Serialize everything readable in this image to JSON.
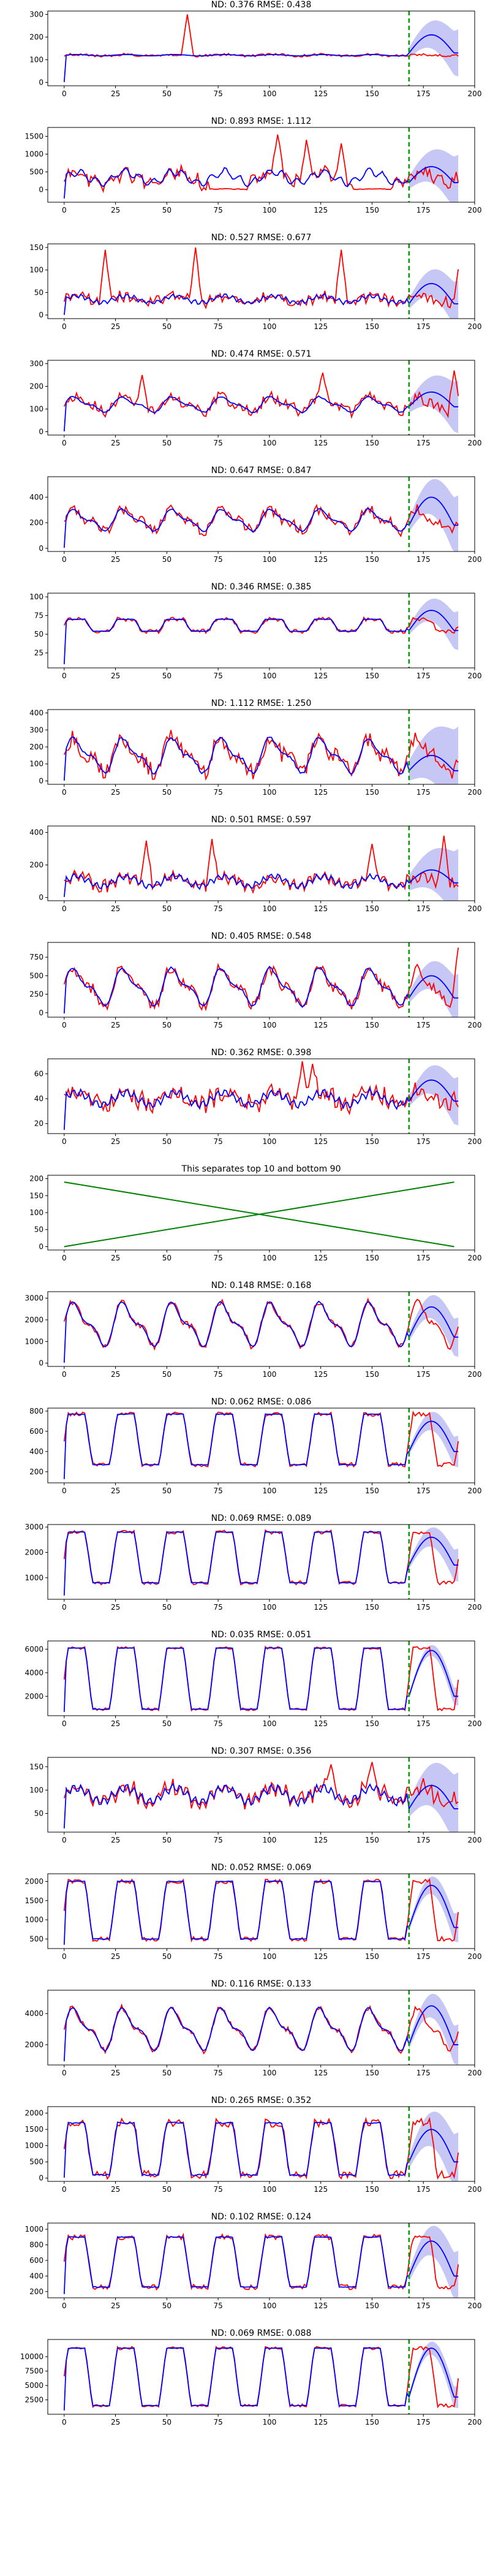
{
  "figure": {
    "x_ticks": [
      0,
      25,
      50,
      75,
      100,
      125,
      150,
      175,
      200
    ],
    "x_range": [
      -8,
      200
    ],
    "forecast_start": 168,
    "colors": {
      "target": "#ff0000",
      "forecast": "#0000ff",
      "band": "#9999ee",
      "divider": "#00a000",
      "separator": "#008000"
    }
  },
  "chart_data": [
    {
      "type": "line",
      "title": "ND:  0.376 RMSE:  0.438",
      "y_range": [
        -15,
        315
      ],
      "y_ticks": [
        0,
        100,
        200,
        300
      ],
      "base": 120,
      "amp": 10,
      "period": 24,
      "pattern": "flat",
      "noise": 0.12,
      "spikes": [
        [
          60,
          300
        ]
      ],
      "fc_peak": 210,
      "fc_low": 130,
      "band": 80,
      "seed": 1
    },
    {
      "type": "line",
      "title": "ND:  0.893 RMSE:  1.112",
      "y_range": [
        -350,
        1750
      ],
      "y_ticks": [
        0,
        500,
        1000,
        1500
      ],
      "base": 350,
      "amp": 250,
      "period": 24,
      "pattern": "dense",
      "noise": 0.5,
      "spikes": [
        [
          104,
          1550
        ],
        [
          118,
          1400
        ],
        [
          135,
          1300
        ]
      ],
      "fc_peak": 650,
      "fc_low": 200,
      "band": 600,
      "seed": 2
    },
    {
      "type": "line",
      "title": "ND:  0.527 RMSE:  0.677",
      "y_range": [
        -8,
        158
      ],
      "y_ticks": [
        0,
        50,
        100,
        150
      ],
      "base": 35,
      "amp": 15,
      "period": 24,
      "pattern": "spiky",
      "noise": 0.4,
      "spikes": [
        [
          20,
          145
        ],
        [
          64,
          150
        ],
        [
          135,
          145
        ],
        [
          193,
          140
        ]
      ],
      "fc_peak": 70,
      "fc_low": 25,
      "band": 40,
      "seed": 3
    },
    {
      "type": "line",
      "title": "ND:  0.474 RMSE:  0.571",
      "y_range": [
        -15,
        315
      ],
      "y_ticks": [
        0,
        100,
        200,
        300
      ],
      "base": 120,
      "amp": 40,
      "period": 24,
      "pattern": "wave",
      "noise": 0.3,
      "spikes": [
        [
          38,
          250
        ],
        [
          126,
          260
        ],
        [
          190,
          270
        ]
      ],
      "fc_peak": 175,
      "fc_low": 110,
      "band": 90,
      "seed": 4
    },
    {
      "type": "line",
      "title": "ND:  0.647 RMSE:  0.847",
      "y_range": [
        -25,
        560
      ],
      "y_ticks": [
        0,
        200,
        400
      ],
      "base": 220,
      "amp": 100,
      "period": 24,
      "pattern": "wave",
      "noise": 0.25,
      "spikes": [],
      "fc_peak": 400,
      "fc_low": 180,
      "band": 180,
      "seed": 5
    },
    {
      "type": "line",
      "title": "ND:  0.346 RMSE:  0.385",
      "y_range": [
        5,
        105
      ],
      "y_ticks": [
        25,
        50,
        75,
        100
      ],
      "base": 62,
      "amp": 8,
      "period": 24,
      "pattern": "plateau",
      "noise": 0.1,
      "spikes": [],
      "fc_peak": 82,
      "fc_low": 55,
      "band": 20,
      "seed": 6
    },
    {
      "type": "line",
      "title": "ND:  1.112 RMSE:  1.250",
      "y_range": [
        -20,
        420
      ],
      "y_ticks": [
        0,
        100,
        200,
        300,
        400
      ],
      "base": 150,
      "amp": 120,
      "period": 24,
      "pattern": "wave",
      "noise": 0.3,
      "spikes": [],
      "fc_peak": 150,
      "fc_low": 60,
      "band": 200,
      "seed": 7
    },
    {
      "type": "line",
      "title": "ND:  0.501 RMSE:  0.597",
      "y_range": [
        -20,
        440
      ],
      "y_ticks": [
        0,
        200,
        400
      ],
      "base": 100,
      "amp": 60,
      "period": 24,
      "pattern": "spiky",
      "noise": 0.35,
      "spikes": [
        [
          40,
          350
        ],
        [
          72,
          360
        ],
        [
          150,
          330
        ],
        [
          185,
          380
        ]
      ],
      "fc_peak": 170,
      "fc_low": 90,
      "band": 160,
      "seed": 8
    },
    {
      "type": "line",
      "title": "ND:  0.405 RMSE:  0.548",
      "y_range": [
        -60,
        950
      ],
      "y_ticks": [
        0,
        250,
        500,
        750
      ],
      "base": 350,
      "amp": 300,
      "period": 24,
      "pattern": "wave",
      "noise": 0.2,
      "spikes": [
        [
          192,
          880
        ]
      ],
      "fc_peak": 500,
      "fc_low": 200,
      "band": 250,
      "seed": 9
    },
    {
      "type": "line",
      "title": "ND:  0.362 RMSE:  0.398",
      "y_range": [
        12,
        72
      ],
      "y_ticks": [
        20,
        40,
        60
      ],
      "base": 40,
      "amp": 10,
      "period": 24,
      "pattern": "spiky",
      "noise": 0.3,
      "spikes": [
        [
          116,
          70
        ],
        [
          121,
          68
        ]
      ],
      "fc_peak": 55,
      "fc_low": 38,
      "band": 15,
      "seed": 10
    },
    {
      "type": "separator",
      "title": "This separates top 10 and bottom 90",
      "y_range": [
        -10,
        210
      ],
      "y_ticks": [
        0,
        50,
        100,
        150,
        200
      ],
      "lines": [
        [
          [
            0,
            0
          ],
          [
            190,
            190
          ]
        ],
        [
          [
            0,
            190
          ],
          [
            190,
            0
          ]
        ]
      ]
    },
    {
      "type": "line",
      "title": "ND:  0.148 RMSE:  0.168",
      "y_range": [
        -150,
        3300
      ],
      "y_ticks": [
        0,
        1000,
        2000,
        3000
      ],
      "base": 1800,
      "amp": 1200,
      "period": 24,
      "pattern": "wave",
      "noise": 0.08,
      "spikes": [],
      "fc_peak": 2600,
      "fc_low": 1200,
      "band": 700,
      "seed": 12
    },
    {
      "type": "line",
      "title": "ND:  0.062 RMSE:  0.086",
      "y_range": [
        90,
        830
      ],
      "y_ticks": [
        200,
        400,
        600,
        800
      ],
      "base": 520,
      "amp": 250,
      "period": 24,
      "pattern": "plateau",
      "noise": 0.05,
      "spikes": [],
      "fc_peak": 700,
      "fc_low": 400,
      "band": 120,
      "seed": 13
    },
    {
      "type": "line",
      "title": "ND:  0.069 RMSE:  0.089",
      "y_range": [
        150,
        3100
      ],
      "y_ticks": [
        1000,
        2000,
        3000
      ],
      "base": 1800,
      "amp": 1000,
      "period": 24,
      "pattern": "plateau",
      "noise": 0.05,
      "spikes": [],
      "fc_peak": 2600,
      "fc_low": 1500,
      "band": 500,
      "seed": 14
    },
    {
      "type": "line",
      "title": "ND:  0.035 RMSE:  0.051",
      "y_range": [
        350,
        6700
      ],
      "y_ticks": [
        2000,
        4000,
        6000
      ],
      "base": 3500,
      "amp": 2600,
      "period": 24,
      "pattern": "plateau",
      "noise": 0.03,
      "spikes": [],
      "fc_peak": 5900,
      "fc_low": 2000,
      "band": 600,
      "seed": 15
    },
    {
      "type": "line",
      "title": "ND:  0.307 RMSE:  0.356",
      "y_range": [
        10,
        170
      ],
      "y_ticks": [
        50,
        100,
        150
      ],
      "base": 90,
      "amp": 30,
      "period": 24,
      "pattern": "spiky",
      "noise": 0.25,
      "spikes": [
        [
          130,
          155
        ],
        [
          150,
          160
        ]
      ],
      "fc_peak": 110,
      "fc_low": 60,
      "band": 60,
      "seed": 16
    },
    {
      "type": "line",
      "title": "ND:  0.052 RMSE:  0.069",
      "y_range": [
        250,
        2200
      ],
      "y_ticks": [
        500,
        1000,
        1500,
        2000
      ],
      "base": 1250,
      "amp": 750,
      "period": 24,
      "pattern": "plateau",
      "noise": 0.05,
      "spikes": [],
      "fc_peak": 1900,
      "fc_low": 800,
      "band": 300,
      "seed": 17
    },
    {
      "type": "line",
      "title": "ND:  0.116 RMSE:  0.133",
      "y_range": [
        700,
        5500
      ],
      "y_ticks": [
        2000,
        4000
      ],
      "base": 3000,
      "amp": 1600,
      "period": 24,
      "pattern": "wave",
      "noise": 0.07,
      "spikes": [],
      "fc_peak": 4500,
      "fc_low": 2000,
      "band": 1000,
      "seed": 18
    },
    {
      "type": "line",
      "title": "ND:  0.265 RMSE:  0.352",
      "y_range": [
        -100,
        2200
      ],
      "y_ticks": [
        0,
        500,
        1000,
        1500,
        2000
      ],
      "base": 900,
      "amp": 800,
      "period": 24,
      "pattern": "plateau",
      "noise": 0.12,
      "spikes": [],
      "fc_peak": 1500,
      "fc_low": 500,
      "band": 700,
      "seed": 19
    },
    {
      "type": "line",
      "title": "ND:  0.102 RMSE:  0.124",
      "y_range": [
        120,
        1080
      ],
      "y_ticks": [
        200,
        400,
        600,
        800,
        1000
      ],
      "base": 580,
      "amp": 320,
      "period": 24,
      "pattern": "plateau",
      "noise": 0.07,
      "spikes": [],
      "fc_peak": 850,
      "fc_low": 400,
      "band": 250,
      "seed": 20
    },
    {
      "type": "line",
      "title": "ND:  0.069 RMSE:  0.088",
      "y_range": [
        0,
        13000
      ],
      "y_ticks": [
        2500,
        5000,
        7500,
        10000
      ],
      "base": 6500,
      "amp": 5000,
      "period": 24,
      "pattern": "plateau",
      "noise": 0.04,
      "spikes": [],
      "fc_peak": 11500,
      "fc_low": 3000,
      "band": 1500,
      "seed": 21
    }
  ]
}
